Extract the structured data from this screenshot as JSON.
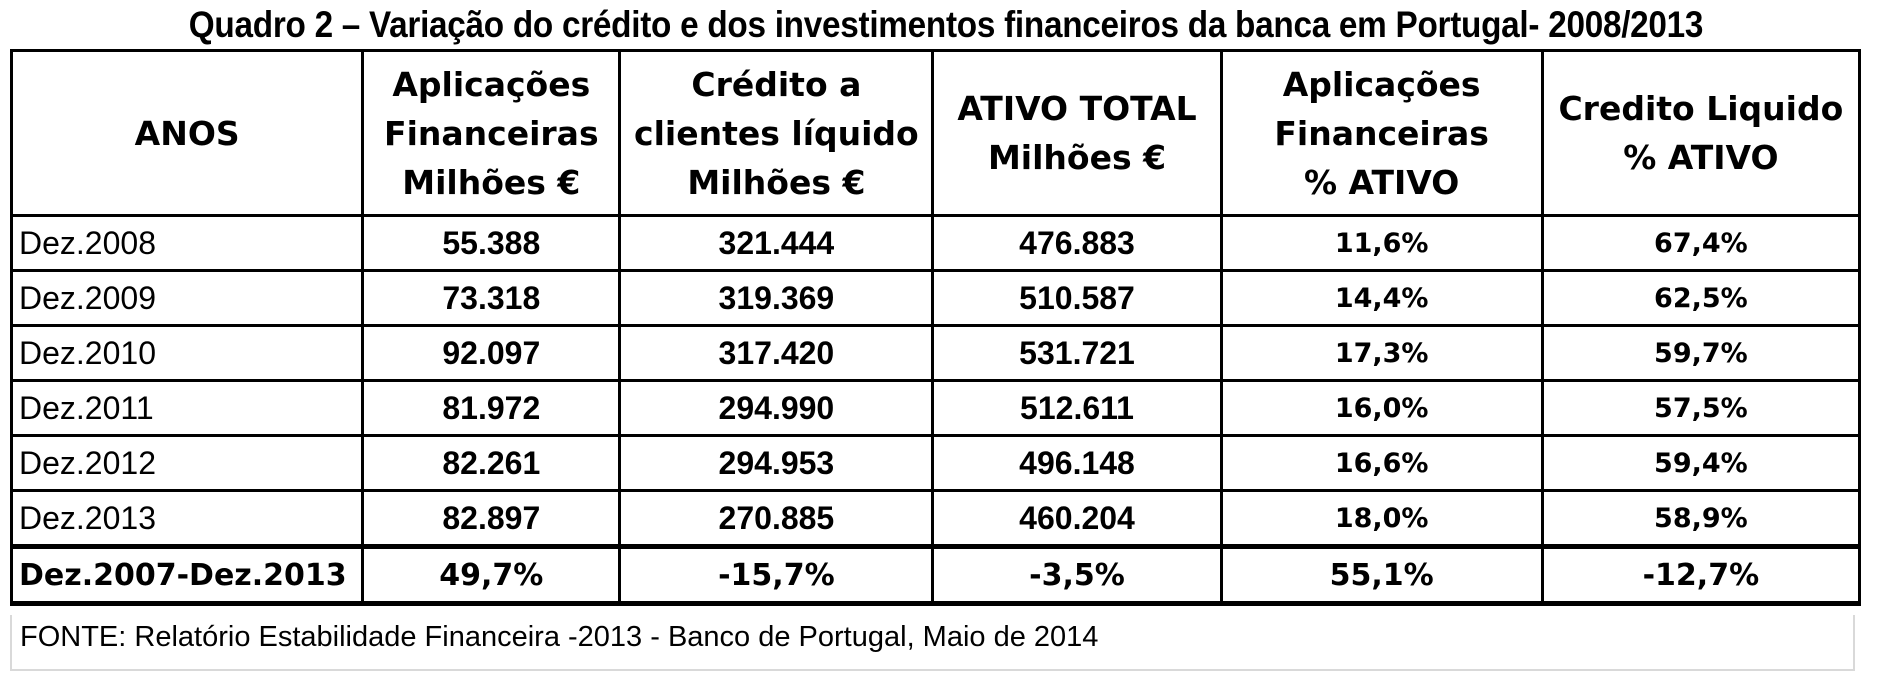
{
  "title": "Quadro 2 – Variação do crédito e dos investimentos financeiros da banca em Portugal- 2008/2013",
  "headers": {
    "anos": "ANOS",
    "aplicacoes_milhoes": [
      "Aplicações",
      "Financeiras",
      "Milhões €"
    ],
    "credito_milhoes": [
      "Crédito a",
      "clientes líquido",
      "Milhões €"
    ],
    "ativo_total": [
      "ATIVO TOTAL",
      "Milhões €"
    ],
    "aplicacoes_pct": [
      "Aplicações",
      "Financeiras",
      "% ATIVO"
    ],
    "credito_pct": [
      "Credito Liquido",
      "% ATIVO"
    ]
  },
  "rows": [
    {
      "year": "Dez.2008",
      "aplicacoes": "55.388",
      "credito": "321.444",
      "ativo": "476.883",
      "aplicacoes_pct": "11,6%",
      "credito_pct": "67,4%"
    },
    {
      "year": "Dez.2009",
      "aplicacoes": "73.318",
      "credito": "319.369",
      "ativo": "510.587",
      "aplicacoes_pct": "14,4%",
      "credito_pct": "62,5%"
    },
    {
      "year": "Dez.2010",
      "aplicacoes": "92.097",
      "credito": "317.420",
      "ativo": "531.721",
      "aplicacoes_pct": "17,3%",
      "credito_pct": "59,7%"
    },
    {
      "year": "Dez.2011",
      "aplicacoes": "81.972",
      "credito": "294.990",
      "ativo": "512.611",
      "aplicacoes_pct": "16,0%",
      "credito_pct": "57,5%"
    },
    {
      "year": "Dez.2012",
      "aplicacoes": "82.261",
      "credito": "294.953",
      "ativo": "496.148",
      "aplicacoes_pct": "16,6%",
      "credito_pct": "59,4%"
    },
    {
      "year": "Dez.2013",
      "aplicacoes": "82.897",
      "credito": "270.885",
      "ativo": "460.204",
      "aplicacoes_pct": "18,0%",
      "credito_pct": "58,9%"
    }
  ],
  "total": {
    "year": "Dez.2007-Dez.2013",
    "aplicacoes": "49,7%",
    "credito": "-15,7%",
    "ativo": "-3,5%",
    "aplicacoes_pct": "55,1%",
    "credito_pct": "-12,7%"
  },
  "source": "FONTE: Relatório Estabilidade Financeira -2013 - Banco de Portugal, Maio de 2014"
}
